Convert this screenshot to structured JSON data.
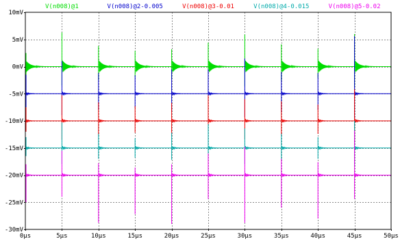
{
  "chart_data": {
    "type": "line",
    "title": "",
    "xlabel": "",
    "ylabel": "",
    "x_unit": "µs",
    "y_unit": "mV",
    "xlim": [
      0,
      50
    ],
    "ylim": [
      -30,
      10
    ],
    "x_ticks": [
      "0µs",
      "5µs",
      "10µs",
      "15µs",
      "20µs",
      "25µs",
      "30µs",
      "35µs",
      "40µs",
      "45µs",
      "50µs"
    ],
    "y_ticks": [
      "10mV",
      "5mV",
      "0mV",
      "-5mV",
      "-10mV",
      "-15mV",
      "-20mV",
      "-25mV",
      "-30mV"
    ],
    "y_tick_values": [
      10,
      5,
      0,
      -5,
      -10,
      -15,
      -20,
      -25,
      -30
    ],
    "x_tick_values": [
      0,
      5,
      10,
      15,
      20,
      25,
      30,
      35,
      40,
      45,
      50
    ],
    "grid": true,
    "legend_position": "top",
    "pulse_times_us": [
      0,
      5,
      10,
      15,
      20,
      25,
      30,
      35,
      40,
      45
    ],
    "series": [
      {
        "name": "V(n008)@1",
        "color": "#00dd00",
        "baseline_mv": 0,
        "spike_peaks_mv": [
          2.5,
          6.3,
          3.8,
          2.9,
          3.2,
          4.4,
          5.9,
          4.1,
          3.3,
          6.0
        ],
        "spike_troughs_mv": [
          -1.6,
          -3.5,
          -2.5,
          -1.9,
          -2.2,
          -2.9,
          -3.6,
          -2.6,
          -2.1,
          -3.7
        ]
      },
      {
        "name": "V(n008)@2-0.005",
        "color": "#0000cc",
        "baseline_mv": -5,
        "spike_peaks_mv": [
          -1.5,
          1.0,
          -1.2,
          -1.6,
          -0.5,
          -0.5,
          1.5,
          -1.0,
          -1.2,
          5.6
        ],
        "spike_troughs_mv": [
          -7.5,
          -9.0,
          -8.0,
          -7.6,
          -8.3,
          -9.6,
          -9.3,
          -8.4,
          -8.0,
          -9.6
        ]
      },
      {
        "name": "V(n008)@3-0.01",
        "color": "#ee0000",
        "baseline_mv": -10,
        "spike_peaks_mv": [
          -7.5,
          -5.3,
          -6.6,
          -7.3,
          -6.7,
          -5.3,
          -6.0,
          -6.4,
          -7.0,
          -4.2
        ],
        "spike_troughs_mv": [
          -12.0,
          -13.5,
          -12.6,
          -12.2,
          -12.8,
          -13.6,
          -13.4,
          -12.7,
          -12.4,
          -14.0
        ]
      },
      {
        "name": "V(n008)@4-0.015",
        "color": "#00aaaa",
        "baseline_mv": -15,
        "spike_peaks_mv": [
          -13.0,
          -10.3,
          -12.4,
          -13.2,
          -12.2,
          -10.6,
          -11.4,
          -12.4,
          -13.0,
          -10.0
        ],
        "spike_troughs_mv": [
          -16.5,
          -18.0,
          -17.0,
          -16.8,
          -17.2,
          -18.2,
          -18.0,
          -17.2,
          -17.0,
          -18.4
        ]
      },
      {
        "name": "V(n008)@5-0.02",
        "color": "#ee00ee",
        "baseline_mv": -20,
        "spike_peaks_mv": [
          -18.0,
          -15.5,
          -17.8,
          -18.6,
          -18.0,
          -16.0,
          -14.8,
          -17.0,
          -17.6,
          -11.8
        ],
        "spike_troughs_mv": [
          -25.0,
          -24.0,
          -28.8,
          -27.2,
          -29.0,
          -24.4,
          -28.8,
          -26.0,
          -28.0,
          -24.4
        ]
      }
    ]
  }
}
